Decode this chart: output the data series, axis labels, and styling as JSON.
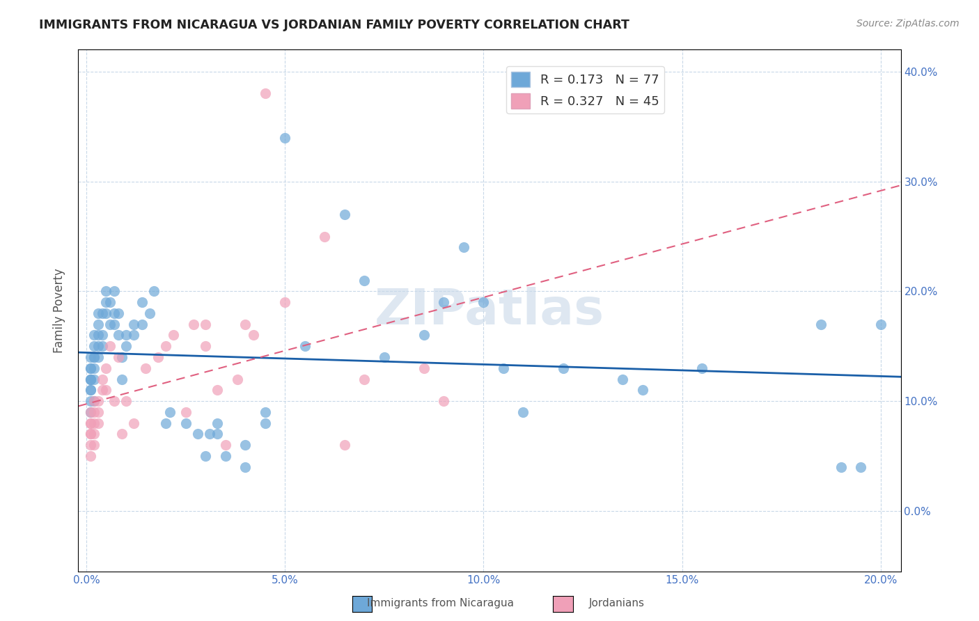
{
  "title": "IMMIGRANTS FROM NICARAGUA VS JORDANIAN FAMILY POVERTY CORRELATION CHART",
  "source": "Source: ZipAtlas.com",
  "xlabel_ticks": [
    "0.0%",
    "5.0%",
    "10.0%",
    "15.0%",
    "20.0%"
  ],
  "xlabel_vals": [
    0.0,
    0.05,
    0.1,
    0.15,
    0.2
  ],
  "ylabel_label": "Family Poverty",
  "ylabel_ticks": [
    "0.0%",
    "10.0%",
    "20.0%",
    "30.0%",
    "40.0%"
  ],
  "ylabel_vals": [
    0.0,
    0.1,
    0.2,
    0.3,
    0.4
  ],
  "xlim": [
    -0.002,
    0.205
  ],
  "ylim": [
    -0.055,
    0.42
  ],
  "blue_R": 0.173,
  "blue_N": 77,
  "pink_R": 0.327,
  "pink_N": 45,
  "blue_color": "#6ea8d8",
  "pink_color": "#f0a0b8",
  "blue_line_color": "#1a5fa8",
  "pink_line_color": "#e06080",
  "legend_label_blue": "Immigrants from Nicaragua",
  "legend_label_pink": "Jordanians",
  "watermark": "ZIPatlas",
  "blue_x": [
    0.001,
    0.001,
    0.001,
    0.001,
    0.001,
    0.001,
    0.001,
    0.001,
    0.001,
    0.001,
    0.002,
    0.002,
    0.002,
    0.002,
    0.002,
    0.002,
    0.002,
    0.003,
    0.003,
    0.003,
    0.003,
    0.003,
    0.004,
    0.004,
    0.004,
    0.005,
    0.005,
    0.005,
    0.006,
    0.006,
    0.007,
    0.007,
    0.007,
    0.008,
    0.008,
    0.009,
    0.009,
    0.01,
    0.01,
    0.012,
    0.012,
    0.014,
    0.014,
    0.016,
    0.017,
    0.02,
    0.021,
    0.025,
    0.028,
    0.03,
    0.031,
    0.033,
    0.033,
    0.035,
    0.04,
    0.04,
    0.045,
    0.045,
    0.05,
    0.055,
    0.065,
    0.07,
    0.075,
    0.085,
    0.09,
    0.095,
    0.1,
    0.105,
    0.11,
    0.12,
    0.135,
    0.14,
    0.155,
    0.185,
    0.19,
    0.195,
    0.2
  ],
  "blue_y": [
    0.12,
    0.13,
    0.14,
    0.12,
    0.11,
    0.13,
    0.12,
    0.11,
    0.1,
    0.09,
    0.14,
    0.16,
    0.15,
    0.13,
    0.12,
    0.1,
    0.14,
    0.17,
    0.18,
    0.15,
    0.14,
    0.16,
    0.18,
    0.16,
    0.15,
    0.19,
    0.18,
    0.2,
    0.17,
    0.19,
    0.2,
    0.18,
    0.17,
    0.16,
    0.18,
    0.14,
    0.12,
    0.16,
    0.15,
    0.17,
    0.16,
    0.19,
    0.17,
    0.18,
    0.2,
    0.08,
    0.09,
    0.08,
    0.07,
    0.05,
    0.07,
    0.07,
    0.08,
    0.05,
    0.06,
    0.04,
    0.09,
    0.08,
    0.34,
    0.15,
    0.27,
    0.21,
    0.14,
    0.16,
    0.19,
    0.24,
    0.19,
    0.13,
    0.09,
    0.13,
    0.12,
    0.11,
    0.13,
    0.17,
    0.04,
    0.04,
    0.17
  ],
  "pink_x": [
    0.001,
    0.001,
    0.001,
    0.001,
    0.001,
    0.001,
    0.001,
    0.002,
    0.002,
    0.002,
    0.002,
    0.002,
    0.003,
    0.003,
    0.003,
    0.004,
    0.004,
    0.005,
    0.005,
    0.006,
    0.007,
    0.008,
    0.009,
    0.01,
    0.012,
    0.015,
    0.018,
    0.02,
    0.022,
    0.025,
    0.027,
    0.03,
    0.03,
    0.033,
    0.035,
    0.038,
    0.04,
    0.042,
    0.045,
    0.05,
    0.06,
    0.065,
    0.07,
    0.085,
    0.09
  ],
  "pink_y": [
    0.07,
    0.08,
    0.09,
    0.06,
    0.05,
    0.08,
    0.07,
    0.08,
    0.09,
    0.07,
    0.1,
    0.06,
    0.1,
    0.08,
    0.09,
    0.12,
    0.11,
    0.13,
    0.11,
    0.15,
    0.1,
    0.14,
    0.07,
    0.1,
    0.08,
    0.13,
    0.14,
    0.15,
    0.16,
    0.09,
    0.17,
    0.15,
    0.17,
    0.11,
    0.06,
    0.12,
    0.17,
    0.16,
    0.38,
    0.19,
    0.25,
    0.06,
    0.12,
    0.13,
    0.1
  ]
}
